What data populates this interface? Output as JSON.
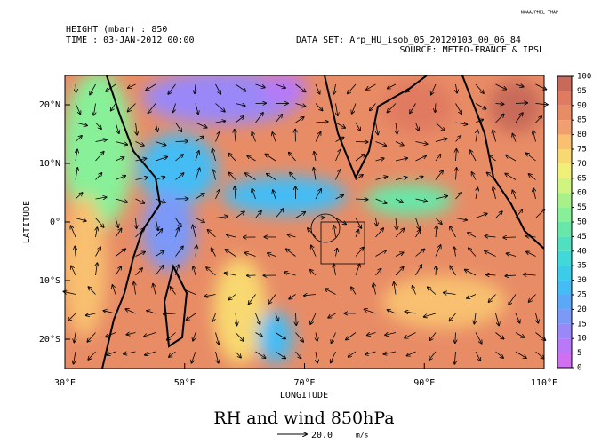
{
  "header": {
    "credit": "NOAA/PMEL TMAP",
    "height": "HEIGHT (mbar) : 850",
    "time": "TIME : 03-JAN-2012 00:00",
    "dataset": "DATA SET: Arp_HU_isob_05_20120103_00_06_84",
    "source": "SOURCE: METEO-FRANCE & IPSL"
  },
  "chart_data": {
    "type": "map",
    "title": "RH and wind 850hPa",
    "x_label": "LONGITUDE",
    "y_label": "LATITUDE",
    "xlim": [
      30,
      110
    ],
    "ylim": [
      -25,
      25
    ],
    "xticks": [
      {
        "value": 30,
        "label": "30°E"
      },
      {
        "value": 50,
        "label": "50°E"
      },
      {
        "value": 70,
        "label": "70°E"
      },
      {
        "value": 90,
        "label": "90°E"
      },
      {
        "value": 110,
        "label": "110°E"
      }
    ],
    "yticks": [
      {
        "value": 20,
        "label": "20°N"
      },
      {
        "value": 10,
        "label": "10°N"
      },
      {
        "value": 0,
        "label": "0°"
      },
      {
        "value": -10,
        "label": "10°S"
      },
      {
        "value": -20,
        "label": "20°S"
      }
    ],
    "colorbar": {
      "levels": [
        0,
        5,
        10,
        15,
        20,
        25,
        30,
        35,
        40,
        45,
        50,
        55,
        60,
        65,
        70,
        75,
        80,
        85,
        90,
        95,
        100
      ],
      "colors": [
        "#d070f0",
        "#b878f8",
        "#9a88f8",
        "#7c98f8",
        "#5ca8f8",
        "#44bcf4",
        "#3ccce8",
        "#40d8d8",
        "#50e0c0",
        "#68e8a8",
        "#88f098",
        "#a8f088",
        "#d0f480",
        "#f0f078",
        "#f8d870",
        "#f8c070",
        "#f0a070",
        "#e88c66",
        "#e07a60",
        "#c86a5a"
      ]
    },
    "reference_vector": {
      "value": 20,
      "label": "20.0",
      "units": "m/s"
    }
  }
}
